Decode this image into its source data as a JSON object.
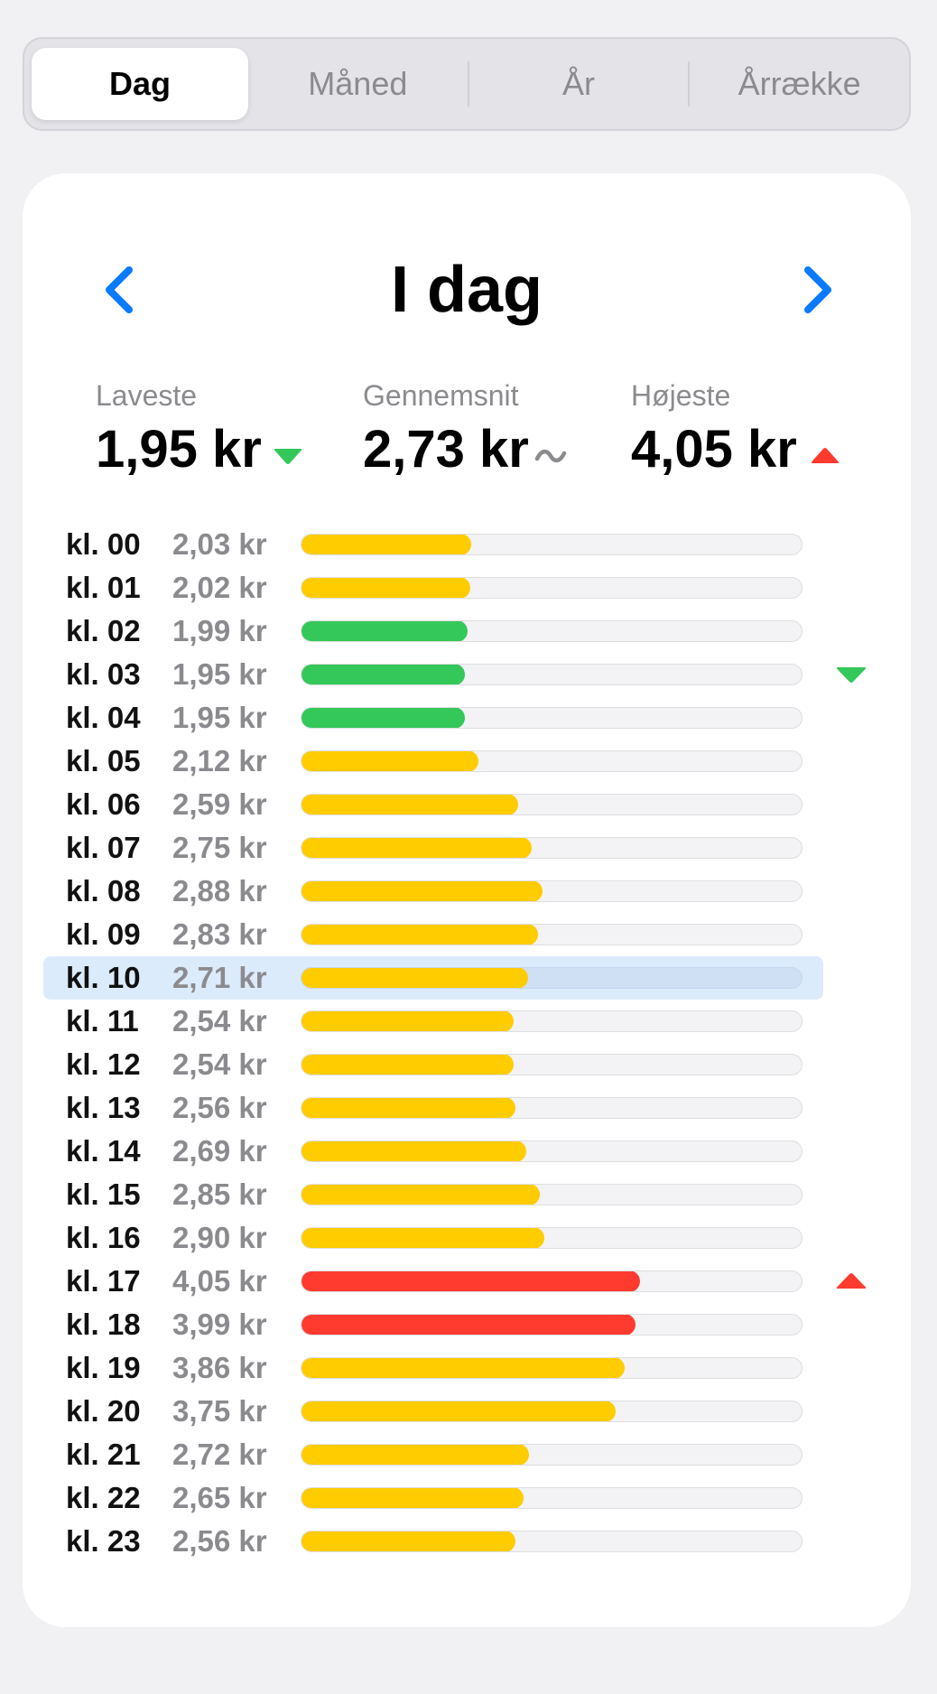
{
  "tabs": [
    {
      "label": "Dag",
      "active": true
    },
    {
      "label": "Måned",
      "active": false
    },
    {
      "label": "År",
      "active": false
    },
    {
      "label": "Årrække",
      "active": false
    }
  ],
  "header": {
    "title": "I dag"
  },
  "stats": {
    "lowest": {
      "label": "Laveste",
      "value": "1,95 kr",
      "icon": "down-triangle-icon"
    },
    "average": {
      "label": "Gennemsnit",
      "value": "2,73 kr",
      "icon": "tilde-icon"
    },
    "highest": {
      "label": "Højeste",
      "value": "4,05 kr",
      "icon": "up-triangle-icon"
    }
  },
  "colors": {
    "low": "#34c759",
    "normal": "#ffcc00",
    "high": "#ff3b30",
    "accent": "#0a7aff",
    "muted": "#8b8b8f"
  },
  "current_hour_index": 10,
  "scale_max": 6.0,
  "chart_data": {
    "type": "bar",
    "categories": [
      "kl. 00",
      "kl. 01",
      "kl. 02",
      "kl. 03",
      "kl. 04",
      "kl. 05",
      "kl. 06",
      "kl. 07",
      "kl. 08",
      "kl. 09",
      "kl. 10",
      "kl. 11",
      "kl. 12",
      "kl. 13",
      "kl. 14",
      "kl. 15",
      "kl. 16",
      "kl. 17",
      "kl. 18",
      "kl. 19",
      "kl. 20",
      "kl. 21",
      "kl. 22",
      "kl. 23"
    ],
    "values": [
      2.03,
      2.02,
      1.99,
      1.95,
      1.95,
      2.12,
      2.59,
      2.75,
      2.88,
      2.83,
      2.71,
      2.54,
      2.54,
      2.56,
      2.69,
      2.85,
      2.9,
      4.05,
      3.99,
      3.86,
      3.75,
      2.72,
      2.65,
      2.56
    ],
    "labels": [
      "2,03 kr",
      "2,02 kr",
      "1,99 kr",
      "1,95 kr",
      "1,95 kr",
      "2,12 kr",
      "2,59 kr",
      "2,75 kr",
      "2,88 kr",
      "2,83 kr",
      "2,71 kr",
      "2,54 kr",
      "2,54 kr",
      "2,56 kr",
      "2,69 kr",
      "2,85 kr",
      "2,90 kr",
      "4,05 kr",
      "3,99 kr",
      "3,86 kr",
      "3,75 kr",
      "2,72 kr",
      "2,65 kr",
      "2,56 kr"
    ],
    "levels": [
      "normal",
      "normal",
      "low",
      "low",
      "low",
      "normal",
      "normal",
      "normal",
      "normal",
      "normal",
      "normal",
      "normal",
      "normal",
      "normal",
      "normal",
      "normal",
      "normal",
      "high",
      "high",
      "normal",
      "normal",
      "normal",
      "normal",
      "normal"
    ],
    "markers": {
      "3": "low",
      "17": "high"
    },
    "title": "",
    "xlabel": "",
    "ylabel": "",
    "ylim": [
      0,
      6
    ]
  }
}
